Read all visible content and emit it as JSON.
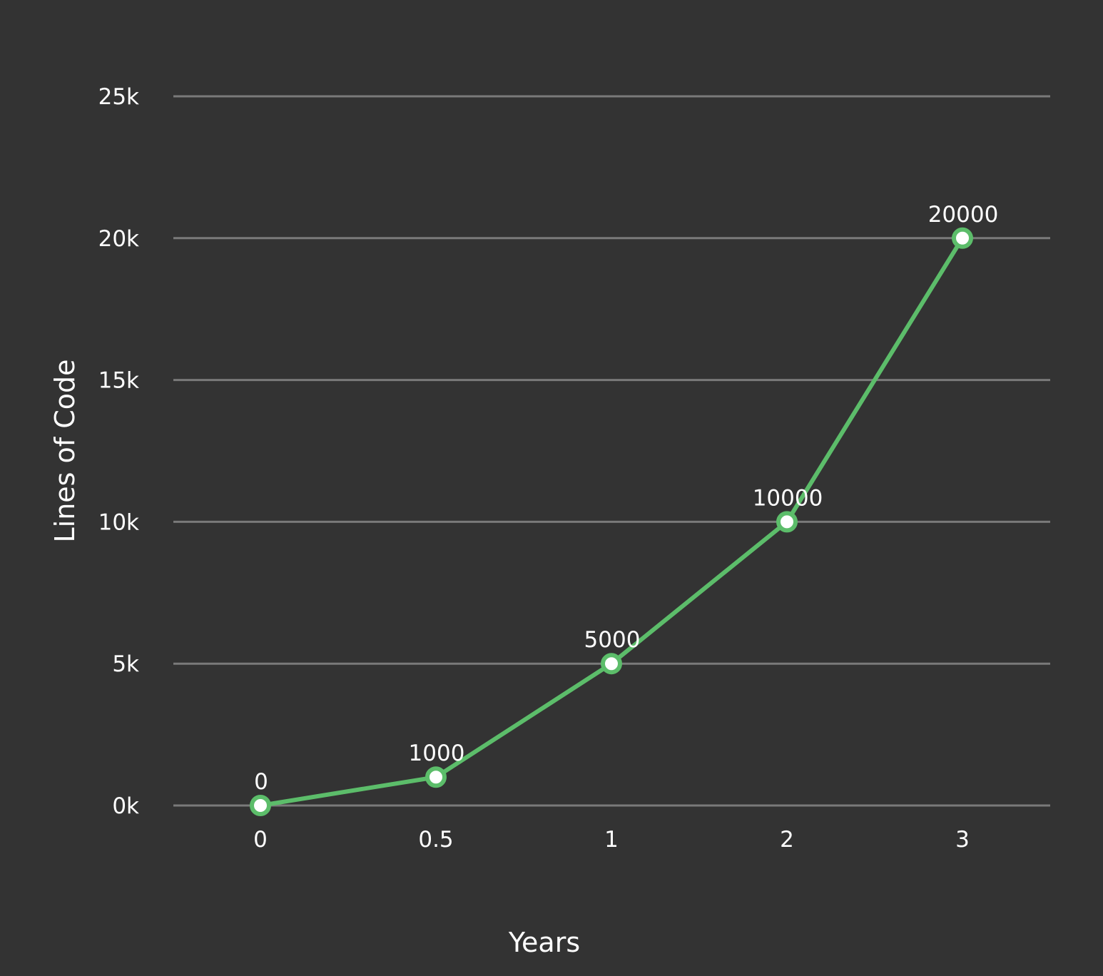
{
  "chart_data": {
    "type": "line",
    "x": [
      "0",
      "0.5",
      "1",
      "2",
      "3"
    ],
    "series": [
      {
        "values": [
          0,
          1000,
          5000,
          10000,
          20000
        ],
        "color": "#5cbd6a"
      }
    ],
    "data_labels": [
      "0",
      "1000",
      "5000",
      "10000",
      "20000"
    ],
    "xlabel": "Years",
    "ylabel": "Lines of Code",
    "ylim": [
      0,
      25000
    ],
    "yticks": [
      0,
      5000,
      10000,
      15000,
      20000,
      25000
    ],
    "ytick_labels": [
      "0k",
      "5k",
      "10k",
      "15k",
      "20k",
      "25k"
    ],
    "grid": true,
    "x_scale": "categorical",
    "legend": "none",
    "background": "#333333",
    "text_color": "#ffffff",
    "grid_color": "#7a7a7a"
  }
}
